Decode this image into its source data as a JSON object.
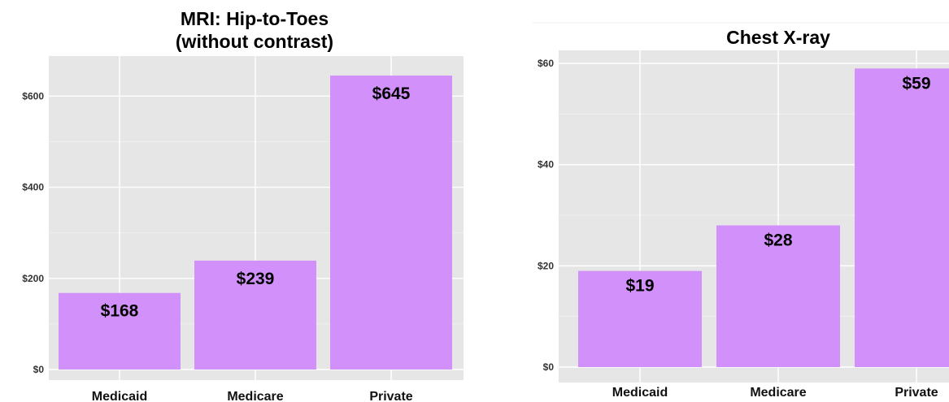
{
  "colors": {
    "panel": "#e6e6e6",
    "grid_major": "#ffffff",
    "grid_minor": "#f0f0f0",
    "bar": "#d291fa"
  },
  "chart_data": [
    {
      "type": "bar",
      "title": "MRI: Hip-to-Toes\n(without contrast)",
      "title_lines": [
        "MRI: Hip-to-Toes",
        "(without contrast)"
      ],
      "categories": [
        "Medicaid",
        "Medicare",
        "Private"
      ],
      "values": [
        168,
        239,
        645
      ],
      "data_labels": [
        "$168",
        "$239",
        "$645"
      ],
      "ylim": [
        0,
        695
      ],
      "yticks": [
        0,
        200,
        400,
        600
      ],
      "ytick_labels": [
        "$0",
        "$200",
        "$400",
        "$600"
      ],
      "xlabel": "",
      "ylabel": "",
      "grid": true,
      "legend": "none"
    },
    {
      "type": "bar",
      "title": "Chest X-ray",
      "title_lines": [
        "Chest X-ray"
      ],
      "categories": [
        "Medicaid",
        "Medicare",
        "Private"
      ],
      "values": [
        19,
        28,
        59
      ],
      "data_labels": [
        "$19",
        "$28",
        "$59"
      ],
      "ylim": [
        0,
        60.5
      ],
      "yticks": [
        0,
        20,
        40,
        60
      ],
      "ytick_labels": [
        "$0",
        "$20",
        "$40",
        "$60"
      ],
      "xlabel": "",
      "ylabel": "",
      "grid": true,
      "legend": "none"
    }
  ]
}
